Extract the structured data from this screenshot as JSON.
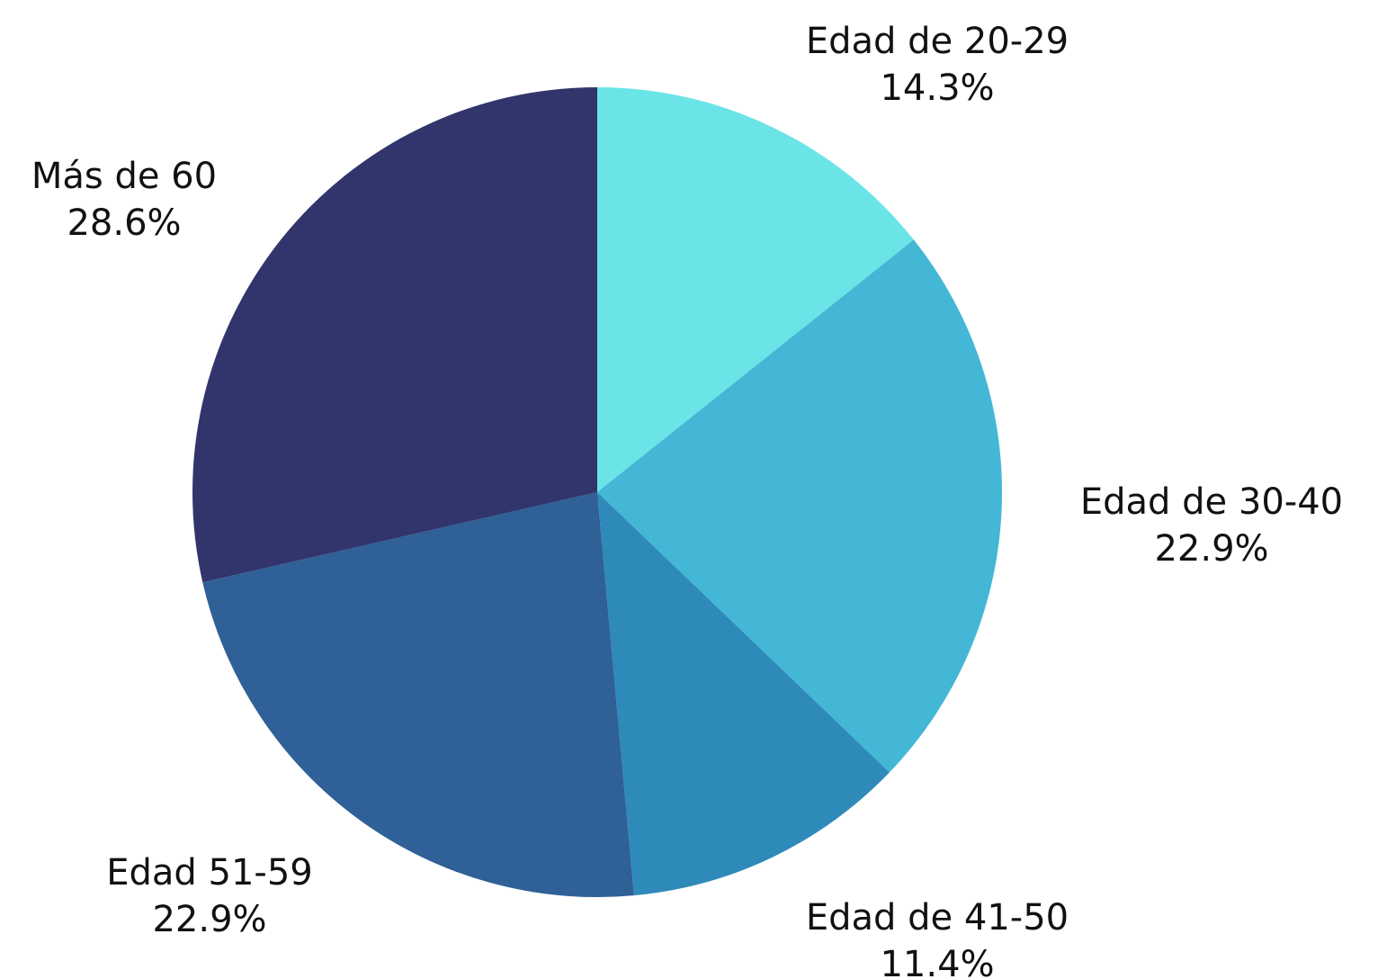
{
  "chart_data": {
    "type": "pie",
    "title": "",
    "start_angle_deg": 0,
    "direction": "clockwise",
    "slices": [
      {
        "label": "Edad de 20-29",
        "value": 14.3,
        "display": "14.3%",
        "color": "#6ae4e7"
      },
      {
        "label": "Edad de 30-40",
        "value": 22.9,
        "display": "22.9%",
        "color": "#43b7d5"
      },
      {
        "label": "Edad de 41-50",
        "value": 11.4,
        "display": "11.4%",
        "color": "#2e8ab9"
      },
      {
        "label": "Edad 51-59",
        "value": 22.9,
        "display": "22.9%",
        "color": "#2f6097"
      },
      {
        "label": "Más de 60",
        "value": 28.6,
        "display": "28.6%",
        "color": "#31356b"
      }
    ]
  }
}
